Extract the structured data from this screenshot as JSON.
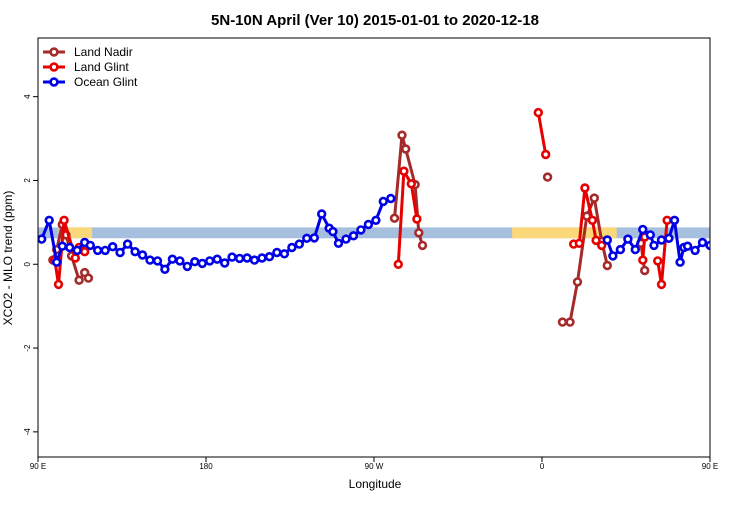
{
  "chart_data": {
    "type": "line",
    "title": "5N-10N April (Ver 10)   2015-01-01 to 2020-12-18",
    "xlabel": "Longitude",
    "ylabel": "XCO2 - MLO trend (ppm)",
    "xlim": [
      90,
      450
    ],
    "ylim": [
      -4.6,
      5.4
    ],
    "x_ticks": [
      {
        "value": 90,
        "label": "90 E"
      },
      {
        "value": 180,
        "label": "180"
      },
      {
        "value": 270,
        "label": "90 W"
      },
      {
        "value": 360,
        "label": "0"
      },
      {
        "value": 450,
        "label": "90 E"
      },
      {
        "value": 540,
        "label": "180"
      }
    ],
    "y_ticks": [
      {
        "value": -4,
        "label": "-4"
      },
      {
        "value": -2,
        "label": "-2"
      },
      {
        "value": 0,
        "label": "0"
      },
      {
        "value": 2,
        "label": "2"
      },
      {
        "value": 4,
        "label": "4"
      }
    ],
    "legend_position": "top-left",
    "band": {
      "y_min": 0.62,
      "y_max": 0.88,
      "color": "#a7bfdf",
      "land_color": "#fbd87a",
      "land_segments": [
        [
          101,
          119
        ],
        [
          344,
          400
        ],
        [
          528,
          534
        ]
      ]
    },
    "series": [
      {
        "name": "Land Nadir",
        "color": "#a52a2a",
        "points": [
          [
            98,
            0.1
          ],
          [
            100,
            0.35
          ],
          [
            103,
            0.95
          ],
          [
            105,
            0.7
          ],
          [
            108,
            0.2
          ],
          [
            112,
            -0.38
          ],
          [
            115,
            -0.2
          ],
          [
            117,
            -0.33
          ],
          null,
          [
            281,
            1.1
          ],
          [
            285,
            3.08
          ],
          [
            287,
            2.75
          ],
          [
            292,
            1.9
          ],
          [
            294,
            0.75
          ],
          [
            296,
            0.45
          ],
          null,
          [
            363,
            2.08
          ],
          null,
          [
            371,
            -1.38
          ],
          [
            375,
            -1.38
          ],
          [
            379,
            -0.42
          ],
          [
            384,
            1.15
          ],
          [
            388,
            1.58
          ],
          [
            392,
            0.55
          ],
          [
            395,
            -0.03
          ],
          null,
          [
            413,
            0.5
          ],
          [
            415,
            -0.15
          ],
          null,
          [
            523,
            -0.38
          ],
          [
            526,
            -0.2
          ],
          [
            528,
            -0.33
          ]
        ]
      },
      {
        "name": "Land Glint",
        "color": "#e60000",
        "points": [
          [
            99,
            0.1
          ],
          [
            101,
            -0.48
          ],
          [
            104,
            1.05
          ],
          [
            110,
            0.15
          ],
          [
            112,
            0.4
          ],
          [
            115,
            0.3
          ],
          null,
          [
            283,
            0.0
          ],
          [
            286,
            2.22
          ],
          [
            290,
            1.92
          ],
          [
            293,
            1.08
          ],
          null,
          [
            358,
            3.62
          ],
          [
            362,
            2.62
          ],
          null,
          [
            377,
            0.48
          ],
          [
            380,
            0.5
          ],
          [
            383,
            1.82
          ],
          [
            387,
            1.05
          ],
          [
            389,
            0.57
          ],
          [
            392,
            0.45
          ],
          null,
          [
            414,
            0.1
          ],
          [
            415,
            0.65
          ],
          null,
          [
            422,
            0.08
          ],
          [
            424,
            -0.48
          ],
          [
            427,
            1.05
          ]
        ]
      },
      {
        "name": "Ocean Glint",
        "color": "#0000e6",
        "points": [
          [
            92,
            0.6
          ],
          [
            96,
            1.05
          ],
          [
            100,
            0.05
          ],
          [
            103,
            0.43
          ],
          [
            107,
            0.4
          ],
          [
            111,
            0.33
          ],
          [
            115,
            0.52
          ],
          [
            118,
            0.45
          ],
          [
            122,
            0.33
          ],
          [
            126,
            0.33
          ],
          [
            130,
            0.42
          ],
          [
            134,
            0.28
          ],
          [
            138,
            0.48
          ],
          [
            142,
            0.3
          ],
          [
            146,
            0.22
          ],
          [
            150,
            0.1
          ],
          [
            154,
            0.08
          ],
          [
            158,
            -0.12
          ],
          [
            162,
            0.12
          ],
          [
            166,
            0.08
          ],
          [
            170,
            -0.05
          ],
          [
            174,
            0.06
          ],
          [
            178,
            0.02
          ],
          [
            182,
            0.08
          ],
          [
            186,
            0.12
          ],
          [
            190,
            0.03
          ],
          [
            194,
            0.17
          ],
          [
            198,
            0.14
          ],
          [
            202,
            0.15
          ],
          [
            206,
            0.1
          ],
          [
            210,
            0.15
          ],
          [
            214,
            0.18
          ],
          [
            218,
            0.28
          ],
          [
            222,
            0.25
          ],
          [
            226,
            0.4
          ],
          [
            230,
            0.48
          ],
          [
            234,
            0.62
          ],
          [
            238,
            0.63
          ],
          [
            242,
            1.2
          ],
          [
            246,
            0.86
          ],
          [
            248,
            0.78
          ],
          [
            251,
            0.5
          ],
          [
            255,
            0.6
          ],
          [
            259,
            0.68
          ],
          [
            263,
            0.82
          ],
          [
            267,
            0.95
          ],
          [
            271,
            1.05
          ],
          [
            275,
            1.5
          ],
          [
            279,
            1.57
          ],
          null,
          [
            395,
            0.58
          ],
          [
            398,
            0.2
          ],
          [
            402,
            0.35
          ],
          [
            406,
            0.6
          ],
          [
            410,
            0.35
          ],
          [
            414,
            0.83
          ],
          [
            418,
            0.7
          ],
          [
            420,
            0.45
          ],
          [
            424,
            0.58
          ],
          [
            428,
            0.62
          ],
          [
            431,
            1.05
          ],
          [
            434,
            0.05
          ],
          [
            436,
            0.4
          ],
          [
            438,
            0.43
          ],
          [
            442,
            0.33
          ],
          [
            446,
            0.52
          ],
          [
            450,
            0.45
          ],
          [
            454,
            0.35
          ],
          [
            458,
            0.35
          ],
          [
            462,
            0.42
          ],
          [
            466,
            0.28
          ],
          [
            470,
            0.48
          ],
          [
            474,
            0.3
          ],
          [
            478,
            0.2
          ],
          [
            482,
            0.05
          ],
          [
            486,
            0.08
          ],
          [
            490,
            -0.12
          ]
        ]
      }
    ]
  }
}
